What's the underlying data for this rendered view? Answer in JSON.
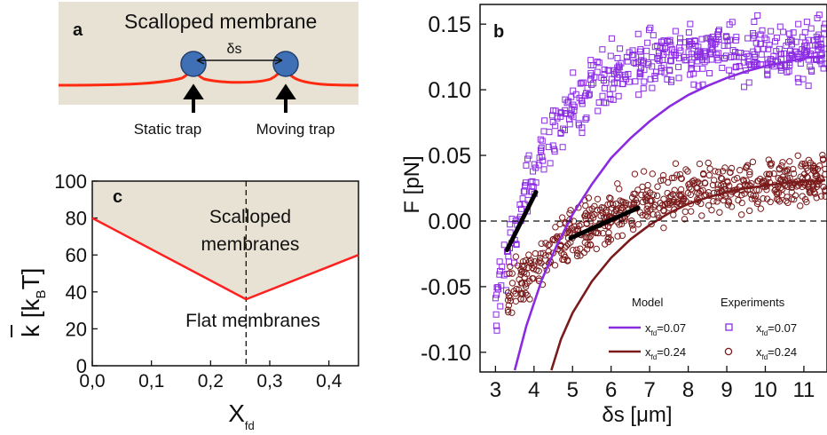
{
  "panel_a": {
    "label": "a",
    "title": "Scalloped membrane",
    "distance_label": "δs",
    "static_trap_label": "Static trap",
    "moving_trap_label": "Moving trap",
    "bg_color": "#e8e2d4",
    "membrane_color": "#ff2a10",
    "bead_color": "#3f6fb4"
  },
  "chart_data": [
    {
      "panel": "c",
      "type": "line",
      "xlabel": "X",
      "xlabel_sub": "fd",
      "ylabel": "k [k",
      "ylabel_sub": "B",
      "ylabel_tail": "T]",
      "xlim": [
        0.0,
        0.45
      ],
      "ylim": [
        0,
        100
      ],
      "xticks": [
        "0,0",
        "0,1",
        "0,2",
        "0,3",
        "0,4"
      ],
      "yticks": [
        "0",
        "20",
        "40",
        "60",
        "80",
        "100"
      ],
      "region_labels": {
        "upper": [
          "Scalloped",
          "membranes"
        ],
        "lower": "Flat membranes"
      },
      "vline_x": 0.26,
      "series": [
        {
          "x": [
            0.0,
            0.26
          ],
          "y": [
            80,
            36
          ]
        },
        {
          "x": [
            0.26,
            0.45
          ],
          "y": [
            36,
            60
          ]
        }
      ],
      "line_color": "#ff2020",
      "shade_color": "#e8e2d4"
    },
    {
      "panel": "b",
      "type": "scatter",
      "xlabel": "δs [μm]",
      "ylabel": "F [pN]",
      "xlim": [
        2.6,
        11.6
      ],
      "ylim": [
        -0.115,
        0.165
      ],
      "xticks": [
        "3",
        "4",
        "5",
        "6",
        "7",
        "8",
        "9",
        "10",
        "11"
      ],
      "yticks": [
        "-0.10",
        "-0.05",
        "0.00",
        "0.05",
        "0.10",
        "0.15"
      ],
      "legend_headers": {
        "model": "Model",
        "experiments": "Experiments"
      },
      "series": [
        {
          "label": "x",
          "label_sub": "fd",
          "label_tail": "=0.07",
          "color": "#8a2be2",
          "marker": "square",
          "model_curve": {
            "x": [
              3.5,
              3.8,
              4.2,
              4.6,
              5.0,
              5.5,
              6.0,
              6.5,
              7.0,
              7.5,
              8.0,
              8.5,
              9.0,
              9.5,
              10.0,
              10.5,
              11.0,
              11.6
            ],
            "y": [
              -0.115,
              -0.08,
              -0.045,
              -0.018,
              0.005,
              0.028,
              0.048,
              0.063,
              0.076,
              0.087,
              0.096,
              0.103,
              0.109,
              0.114,
              0.118,
              0.121,
              0.124,
              0.126
            ]
          },
          "experiment": {
            "x_start": 3.0,
            "x_end": 11.6,
            "y_start": -0.065,
            "y_plateau": 0.132,
            "rate": 0.72,
            "noise": 0.016,
            "count": 520
          }
        },
        {
          "label": "x",
          "label_sub": "fd",
          "label_tail": "=0.24",
          "color": "#7a1a1a",
          "marker": "circle",
          "model_curve": {
            "x": [
              4.45,
              4.7,
              5.0,
              5.5,
              6.0,
              6.5,
              7.0,
              7.5,
              8.0,
              8.5,
              9.0,
              9.5,
              10.0,
              10.5,
              11.0,
              11.6
            ],
            "y": [
              -0.115,
              -0.09,
              -0.07,
              -0.046,
              -0.028,
              -0.014,
              -0.003,
              0.006,
              0.013,
              0.018,
              0.022,
              0.025,
              0.027,
              0.029,
              0.03,
              0.031
            ]
          },
          "experiment": {
            "x_start": 3.3,
            "x_end": 11.6,
            "y_start": -0.06,
            "y_plateau": 0.035,
            "rate": 0.42,
            "noise": 0.014,
            "count": 620
          }
        }
      ],
      "slope_lines": [
        {
          "x": [
            3.3,
            4.05
          ],
          "y": [
            -0.022,
            0.022
          ]
        },
        {
          "x": [
            4.95,
            6.7
          ],
          "y": [
            -0.013,
            0.01
          ]
        }
      ],
      "hline_y": 0.0
    }
  ],
  "panel_c_label": "c",
  "panel_b_label": "b"
}
